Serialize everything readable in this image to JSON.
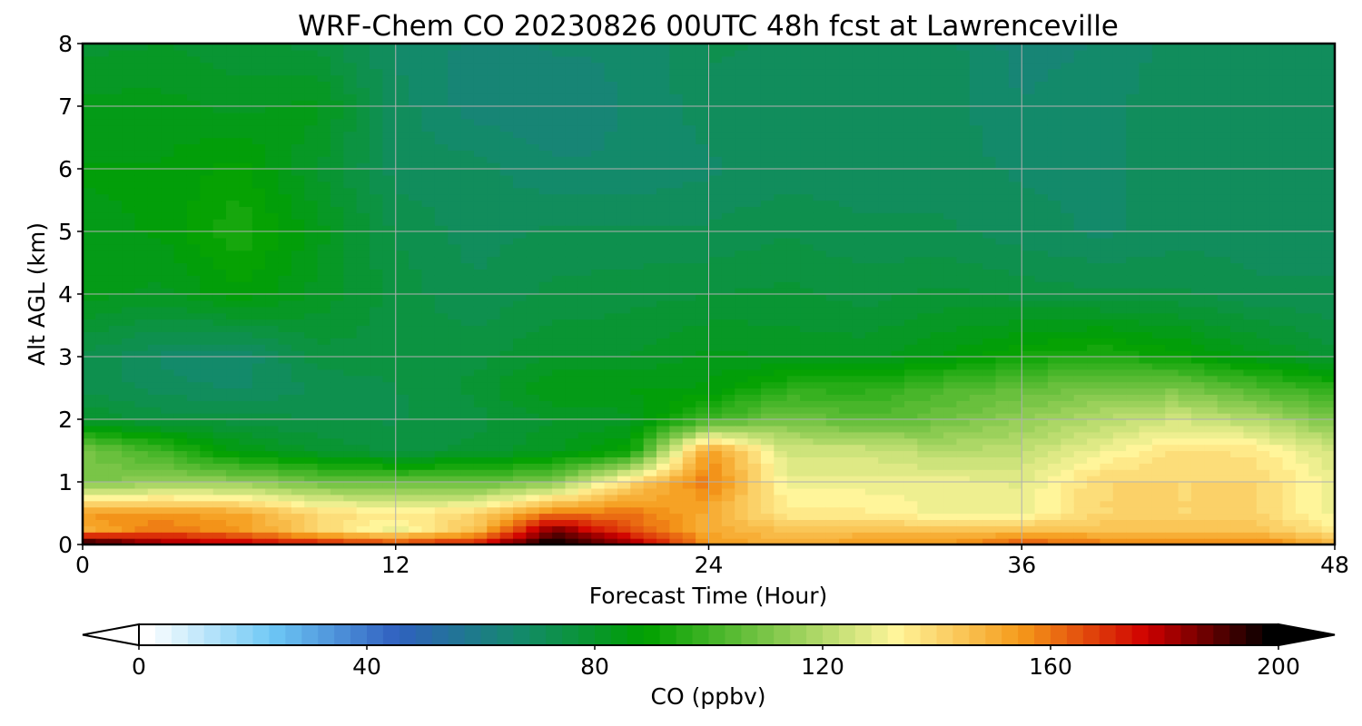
{
  "chart_data": {
    "type": "heatmap",
    "title": "WRF-Chem CO  20230826 00UTC 48h fcst at Lawrenceville",
    "xlabel": "Forecast Time (Hour)",
    "ylabel": "Alt AGL (km)",
    "xlim": [
      0,
      48
    ],
    "ylim": [
      0,
      8
    ],
    "xticks": [
      "0",
      "12",
      "24",
      "36",
      "48"
    ],
    "yticks": [
      "0",
      "1",
      "2",
      "3",
      "4",
      "5",
      "6",
      "7",
      "8"
    ],
    "grid": true,
    "colorbar": {
      "label": "CO  (ppbv)",
      "range": [
        0,
        200
      ],
      "ticks": [
        "0",
        "40",
        "80",
        "120",
        "160",
        "200"
      ],
      "extend": "both",
      "colors": [
        "#ffffff",
        "#6ec8f5",
        "#3060c0",
        "#138a6a",
        "#00a000",
        "#7fc74a",
        "#fff59a",
        "#f59a1a",
        "#d00000",
        "#000000"
      ]
    },
    "profile_hours": [
      0,
      3,
      6,
      9,
      12,
      15,
      18,
      21,
      24,
      27,
      30,
      33,
      36,
      39,
      42,
      45,
      48
    ],
    "profile_alt_km": [
      0,
      0.25,
      0.5,
      1,
      1.5,
      2,
      2.5,
      3,
      4,
      5,
      6,
      7,
      8
    ],
    "co_ppbv": [
      [
        200,
        150,
        155,
        110,
        110,
        80,
        74,
        74,
        84,
        85,
        86,
        84,
        79
      ],
      [
        185,
        160,
        155,
        114,
        100,
        76,
        70,
        68,
        82,
        86,
        86,
        84,
        80
      ],
      [
        180,
        155,
        152,
        114,
        85,
        76,
        68,
        66,
        88,
        94,
        90,
        82,
        78
      ],
      [
        175,
        140,
        140,
        108,
        80,
        74,
        72,
        76,
        82,
        84,
        80,
        84,
        76
      ],
      [
        170,
        130,
        135,
        106,
        76,
        74,
        74,
        76,
        76,
        74,
        70,
        70,
        68
      ],
      [
        175,
        145,
        140,
        106,
        78,
        76,
        78,
        76,
        72,
        70,
        70,
        64,
        65
      ],
      [
        200,
        185,
        160,
        112,
        82,
        80,
        86,
        80,
        75,
        72,
        66,
        64,
        66
      ],
      [
        185,
        165,
        160,
        140,
        90,
        82,
        86,
        80,
        76,
        72,
        66,
        66,
        66
      ],
      [
        155,
        150,
        150,
        160,
        155,
        100,
        86,
        84,
        77,
        72,
        68,
        70,
        72
      ],
      [
        150,
        145,
        135,
        130,
        125,
        110,
        96,
        82,
        78,
        74,
        70,
        70,
        71
      ],
      [
        155,
        145,
        135,
        130,
        125,
        104,
        96,
        82,
        76,
        72,
        70,
        70,
        70
      ],
      [
        155,
        145,
        130,
        130,
        120,
        108,
        102,
        86,
        78,
        72,
        70,
        70,
        70
      ],
      [
        165,
        145,
        130,
        128,
        122,
        114,
        106,
        92,
        76,
        70,
        68,
        66,
        64
      ],
      [
        160,
        145,
        140,
        140,
        130,
        120,
        110,
        95,
        75,
        68,
        68,
        68,
        66
      ],
      [
        160,
        145,
        140,
        140,
        138,
        125,
        110,
        90,
        75,
        70,
        70,
        70,
        70
      ],
      [
        160,
        145,
        140,
        140,
        136,
        120,
        102,
        84,
        72,
        70,
        70,
        70,
        70
      ],
      [
        150,
        135,
        130,
        130,
        125,
        110,
        96,
        78,
        72,
        70,
        70,
        70,
        70
      ]
    ]
  }
}
